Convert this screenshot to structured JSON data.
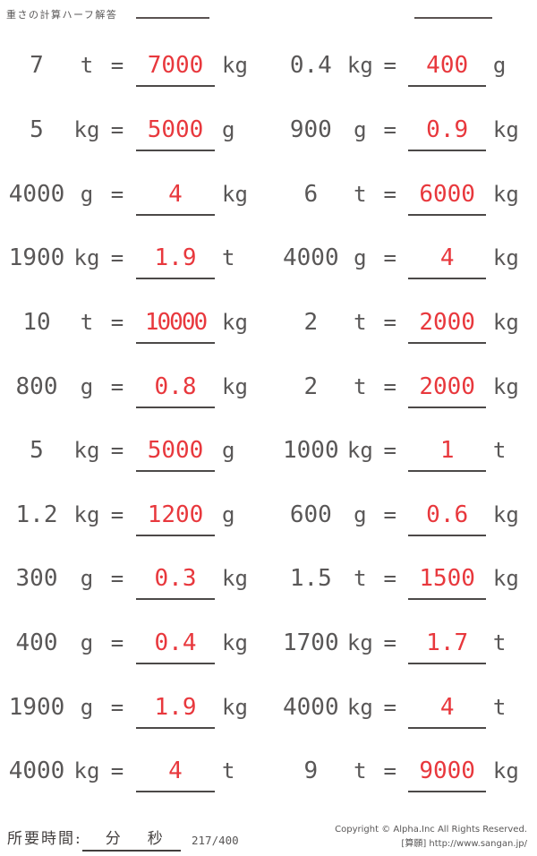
{
  "title": "重さの計算ハーフ解答",
  "symbols": {
    "equals": "="
  },
  "colors": {
    "text": "#595757",
    "answer_red": "#e8383d",
    "line_dark": "#4c4948",
    "background": "#ffffff"
  },
  "problems": [
    {
      "value": "7",
      "unit": "t",
      "answer": "7000",
      "answer_unit": "kg"
    },
    {
      "value": "0.4",
      "unit": "kg",
      "answer": "400",
      "answer_unit": "g"
    },
    {
      "value": "5",
      "unit": "kg",
      "answer": "5000",
      "answer_unit": "g"
    },
    {
      "value": "900",
      "unit": "g",
      "answer": "0.9",
      "answer_unit": "kg"
    },
    {
      "value": "4000",
      "unit": "g",
      "answer": "4",
      "answer_unit": "kg"
    },
    {
      "value": "6",
      "unit": "t",
      "answer": "6000",
      "answer_unit": "kg"
    },
    {
      "value": "1900",
      "unit": "kg",
      "answer": "1.9",
      "answer_unit": "t"
    },
    {
      "value": "4000",
      "unit": "g",
      "answer": "4",
      "answer_unit": "kg"
    },
    {
      "value": "10",
      "unit": "t",
      "answer": "10000",
      "answer_unit": "kg"
    },
    {
      "value": "2",
      "unit": "t",
      "answer": "2000",
      "answer_unit": "kg"
    },
    {
      "value": "800",
      "unit": "g",
      "answer": "0.8",
      "answer_unit": "kg"
    },
    {
      "value": "2",
      "unit": "t",
      "answer": "2000",
      "answer_unit": "kg"
    },
    {
      "value": "5",
      "unit": "kg",
      "answer": "5000",
      "answer_unit": "g"
    },
    {
      "value": "1000",
      "unit": "kg",
      "answer": "1",
      "answer_unit": "t"
    },
    {
      "value": "1.2",
      "unit": "kg",
      "answer": "1200",
      "answer_unit": "g"
    },
    {
      "value": "600",
      "unit": "g",
      "answer": "0.6",
      "answer_unit": "kg"
    },
    {
      "value": "300",
      "unit": "g",
      "answer": "0.3",
      "answer_unit": "kg"
    },
    {
      "value": "1.5",
      "unit": "t",
      "answer": "1500",
      "answer_unit": "kg"
    },
    {
      "value": "400",
      "unit": "g",
      "answer": "0.4",
      "answer_unit": "kg"
    },
    {
      "value": "1700",
      "unit": "kg",
      "answer": "1.7",
      "answer_unit": "t"
    },
    {
      "value": "1900",
      "unit": "g",
      "answer": "1.9",
      "answer_unit": "kg"
    },
    {
      "value": "4000",
      "unit": "kg",
      "answer": "4",
      "answer_unit": "t"
    },
    {
      "value": "4000",
      "unit": "kg",
      "answer": "4",
      "answer_unit": "t"
    },
    {
      "value": "9",
      "unit": "t",
      "answer": "9000",
      "answer_unit": "kg"
    }
  ],
  "footer": {
    "time_label": "所要時間:",
    "minutes_label": "分",
    "seconds_label": "秒",
    "page_number": "217/400",
    "copyright_line1": "Copyright © Alpha.Inc All Rights Reserved.",
    "copyright_line2": "[算願] http://www.sangan.jp/"
  }
}
